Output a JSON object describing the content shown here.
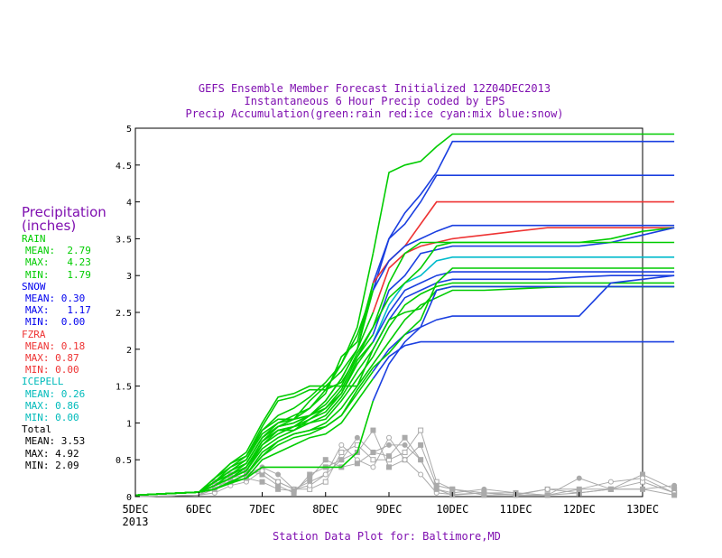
{
  "titles": [
    "GEFS Ensemble Member Forecast Initialized 12Z04DEC2013",
    "Instantaneous 6 Hour Precip coded by EPS",
    "Precip Accumulation(green:rain red:ice cyan:mix blue:snow)"
  ],
  "footer": "Station Data Plot for: Baltimore,MD",
  "stats_panel": {
    "heading_1": "Precipitation",
    "heading_2": "(inches)",
    "groups": [
      {
        "name": "RAIN",
        "color": "#00cc00",
        "rows": [
          "MEAN:  2.79",
          "MAX:   4.23",
          "MIN:   1.79"
        ]
      },
      {
        "name": "SNOW",
        "color": "#0000ee",
        "rows": [
          "MEAN: 0.30",
          "MAX:   1.17",
          "MIN:  0.00"
        ]
      },
      {
        "name": "FZRA",
        "color": "#ee3333",
        "rows": [
          "MEAN: 0.18",
          "MAX: 0.87",
          "MIN: 0.00"
        ]
      },
      {
        "name": "ICEPELL",
        "color": "#00bbbb",
        "rows": [
          "MEAN: 0.26",
          "MAX: 0.86",
          "MIN: 0.00"
        ]
      },
      {
        "name": "Total",
        "color": "#000000",
        "rows": [
          "MEAN: 3.53",
          "MAX: 4.92",
          "MIN: 2.09"
        ]
      }
    ]
  },
  "chart_data": {
    "type": "line",
    "x_tick_labels": [
      "5DEC",
      "6DEC",
      "7DEC",
      "8DEC",
      "9DEC",
      "10DEC",
      "11DEC",
      "12DEC",
      "13DEC"
    ],
    "x_tick_sublabel": "2013",
    "ylim": [
      0,
      5
    ],
    "y_ticks": [
      "0",
      "0.5",
      "1",
      "1.5",
      "2",
      "2.5",
      "3",
      "3.5",
      "4",
      "4.5",
      "5"
    ],
    "colors": {
      "rain": "#00cc00",
      "snow": "#1a3fe0",
      "ice": "#ee3333",
      "mix": "#00bbcc",
      "instant": "#aaaaaa"
    },
    "x_days_from_5dec": [
      0,
      0.5,
      1.0,
      1.25,
      1.5,
      1.75,
      2.0,
      2.25,
      2.5,
      2.75,
      3.0,
      3.25,
      3.5,
      3.75,
      4.0,
      4.25,
      4.5,
      4.75,
      5.0,
      5.5,
      6.0,
      6.5,
      7.0,
      7.5,
      8.0,
      8.5
    ],
    "series": [
      {
        "values": [
          0.02,
          0.04,
          0.06,
          0.25,
          0.45,
          0.55,
          0.9,
          1.1,
          1.2,
          1.35,
          1.55,
          1.8,
          2.3,
          3.3,
          4.4,
          4.5,
          4.55,
          4.75,
          4.92,
          4.92,
          4.92,
          4.92,
          4.92,
          4.92,
          4.92,
          4.92
        ],
        "seg": "rain"
      },
      {
        "values": [
          0.02,
          0.04,
          0.06,
          0.2,
          0.35,
          0.5,
          0.85,
          1.0,
          1.05,
          1.3,
          1.5,
          1.7,
          2.0,
          2.9,
          3.5,
          3.85,
          4.1,
          4.4,
          4.82,
          4.82,
          4.82,
          4.82,
          4.82,
          4.82,
          4.82,
          4.82
        ],
        "seg": "snow"
      },
      {
        "values": [
          0.02,
          0.04,
          0.06,
          0.2,
          0.3,
          0.4,
          0.75,
          0.95,
          1.0,
          1.1,
          1.3,
          1.6,
          2.0,
          2.8,
          3.5,
          3.7,
          4.0,
          4.36,
          4.36,
          4.36,
          4.36,
          4.36,
          4.36,
          4.36,
          4.36,
          4.36
        ],
        "seg": "snow"
      },
      {
        "values": [
          0.02,
          0.04,
          0.06,
          0.2,
          0.35,
          0.45,
          0.8,
          1.0,
          1.1,
          1.2,
          1.4,
          1.9,
          2.1,
          2.9,
          3.2,
          3.4,
          3.7,
          4.0,
          4.0,
          4.0,
          4.0,
          4.0,
          4.0,
          4.0,
          4.0,
          4.0
        ],
        "seg": "ice"
      },
      {
        "values": [
          0.02,
          0.04,
          0.06,
          0.25,
          0.4,
          0.5,
          0.9,
          1.05,
          1.05,
          1.2,
          1.45,
          1.8,
          2.2,
          2.8,
          3.2,
          3.4,
          3.5,
          3.6,
          3.68,
          3.68,
          3.68,
          3.68,
          3.68,
          3.68,
          3.68,
          3.68
        ],
        "seg": "snow"
      },
      {
        "values": [
          0.02,
          0.04,
          0.06,
          0.2,
          0.3,
          0.45,
          0.8,
          0.95,
          1.0,
          1.1,
          1.3,
          1.6,
          2.0,
          2.5,
          3.1,
          3.3,
          3.4,
          3.45,
          3.5,
          3.55,
          3.6,
          3.65,
          3.65,
          3.65,
          3.65,
          3.65
        ],
        "seg": "ice"
      },
      {
        "values": [
          0.02,
          0.04,
          0.06,
          0.2,
          0.35,
          0.45,
          0.8,
          0.95,
          1.05,
          1.1,
          1.25,
          1.5,
          1.95,
          2.3,
          2.9,
          3.3,
          3.45,
          3.45,
          3.45,
          3.45,
          3.45,
          3.45,
          3.45,
          3.5,
          3.6,
          3.65
        ],
        "seg": "rain"
      },
      {
        "values": [
          0.02,
          0.04,
          0.06,
          0.15,
          0.3,
          0.4,
          0.75,
          0.9,
          0.95,
          1.1,
          1.2,
          1.45,
          1.9,
          2.2,
          2.8,
          3.0,
          3.3,
          3.35,
          3.4,
          3.4,
          3.4,
          3.4,
          3.4,
          3.45,
          3.55,
          3.65
        ],
        "seg": "snow"
      },
      {
        "values": [
          0.02,
          0.04,
          0.06,
          0.15,
          0.25,
          0.4,
          0.7,
          0.9,
          0.95,
          1.05,
          1.15,
          1.4,
          1.85,
          2.1,
          2.6,
          2.9,
          3.0,
          3.2,
          3.25,
          3.25,
          3.25,
          3.25,
          3.25,
          3.25,
          3.25,
          3.25
        ],
        "seg": "mix"
      },
      {
        "values": [
          0.02,
          0.04,
          0.06,
          0.2,
          0.3,
          0.4,
          0.75,
          0.9,
          0.9,
          1.05,
          1.2,
          1.4,
          1.8,
          2.1,
          2.5,
          2.8,
          2.9,
          3.0,
          3.05,
          3.05,
          3.05,
          3.05,
          3.05,
          3.05,
          3.05,
          3.05
        ],
        "seg": "snow"
      },
      {
        "values": [
          0.02,
          0.04,
          0.06,
          0.15,
          0.25,
          0.35,
          0.7,
          0.85,
          0.95,
          1.0,
          1.1,
          1.35,
          1.7,
          2.0,
          2.4,
          2.7,
          2.8,
          2.9,
          2.95,
          2.95,
          2.95,
          2.95,
          2.98,
          3.0,
          3.0,
          3.0
        ],
        "seg": "snow"
      },
      {
        "values": [
          0.02,
          0.04,
          0.06,
          0.15,
          0.25,
          0.35,
          0.65,
          0.8,
          0.9,
          1.0,
          1.05,
          1.3,
          1.6,
          1.9,
          2.3,
          2.6,
          2.75,
          2.85,
          2.9,
          2.9,
          2.9,
          2.9,
          2.9,
          2.9,
          2.9,
          2.9
        ],
        "seg": "rain"
      },
      {
        "values": [
          0.02,
          0.04,
          0.06,
          0.1,
          0.2,
          0.3,
          0.6,
          0.75,
          0.85,
          0.9,
          1.0,
          1.2,
          1.5,
          1.8,
          2.1,
          2.4,
          2.6,
          2.7,
          2.8,
          2.8,
          2.82,
          2.84,
          2.85,
          2.85,
          2.85,
          2.85
        ],
        "seg": "rain"
      },
      {
        "values": [
          0.02,
          0.04,
          0.06,
          0.1,
          0.2,
          0.3,
          0.55,
          0.7,
          0.8,
          0.85,
          0.95,
          1.1,
          1.4,
          1.7,
          2.0,
          2.2,
          2.3,
          2.4,
          2.45,
          2.45,
          2.45,
          2.45,
          2.45,
          2.9,
          2.95,
          3.0
        ],
        "seg": "snow"
      },
      {
        "values": [
          0.02,
          0.04,
          0.06,
          0.1,
          0.18,
          0.25,
          0.5,
          0.6,
          0.7,
          0.8,
          0.85,
          1.0,
          1.3,
          1.6,
          1.9,
          2.05,
          2.1,
          2.1,
          2.1,
          2.1,
          2.1,
          2.1,
          2.1,
          2.1,
          2.1,
          2.1
        ],
        "seg": "snow"
      },
      {
        "values": [
          0.02,
          0.04,
          0.06,
          0.25,
          0.45,
          0.6,
          1.0,
          1.35,
          1.4,
          1.5,
          1.5,
          1.5,
          1.5,
          2.0,
          2.4,
          2.5,
          2.55,
          2.8,
          2.85,
          2.85,
          2.85,
          2.85,
          2.85,
          2.85,
          2.85,
          2.85
        ],
        "seg": "rain"
      },
      {
        "values": [
          0.02,
          0.04,
          0.06,
          0.2,
          0.4,
          0.55,
          0.95,
          1.3,
          1.35,
          1.45,
          1.45,
          1.55,
          1.9,
          2.3,
          2.7,
          2.9,
          3.1,
          3.4,
          3.45,
          3.45,
          3.45,
          3.45,
          3.45,
          3.45,
          3.45,
          3.45
        ],
        "seg": "rain"
      },
      {
        "values": [
          0.02,
          0.04,
          0.06,
          0.1,
          0.2,
          0.3,
          0.55,
          0.75,
          0.85,
          0.9,
          0.95,
          1.1,
          1.45,
          1.75,
          1.95,
          2.2,
          2.4,
          2.9,
          3.1,
          3.1,
          3.1,
          3.1,
          3.1,
          3.1,
          3.1,
          3.1
        ],
        "seg": "rain"
      },
      {
        "values": [
          0.02,
          0.04,
          0.06,
          0.1,
          0.2,
          0.25,
          0.4,
          0.4,
          0.4,
          0.4,
          0.4,
          0.4,
          0.6,
          1.3,
          1.8,
          2.1,
          2.3,
          2.8,
          2.85,
          2.85,
          2.85,
          2.85,
          2.85,
          2.85,
          2.85,
          2.85
        ],
        "seg": "snow"
      }
    ],
    "instant_series": [
      {
        "values": [
          0.0,
          0.01,
          0.02,
          0.15,
          0.2,
          0.3,
          0.35,
          0.2,
          0.1,
          0.1,
          0.2,
          0.6,
          0.7,
          0.5,
          0.5,
          0.6,
          0.9,
          0.2,
          0.1,
          0.05,
          0.05,
          0.02,
          0.05,
          0.1,
          0.2,
          0.05
        ]
      },
      {
        "values": [
          0.0,
          0.01,
          0.02,
          0.1,
          0.25,
          0.3,
          0.4,
          0.3,
          0.1,
          0.2,
          0.3,
          0.5,
          0.8,
          0.6,
          0.7,
          0.7,
          0.5,
          0.1,
          0.05,
          0.1,
          0.05,
          0.02,
          0.25,
          0.1,
          0.1,
          0.15
        ]
      },
      {
        "values": [
          0.0,
          0.01,
          0.02,
          0.2,
          0.3,
          0.35,
          0.3,
          0.15,
          0.05,
          0.3,
          0.4,
          0.5,
          0.6,
          0.9,
          0.4,
          0.5,
          0.7,
          0.15,
          0.1,
          0.02,
          0.03,
          0.1,
          0.05,
          0.1,
          0.3,
          0.1
        ]
      },
      {
        "values": [
          0.0,
          0.01,
          0.02,
          0.05,
          0.15,
          0.2,
          0.35,
          0.2,
          0.1,
          0.15,
          0.3,
          0.7,
          0.5,
          0.4,
          0.8,
          0.5,
          0.3,
          0.05,
          0.03,
          0.05,
          0.02,
          0.1,
          0.1,
          0.2,
          0.25,
          0.05
        ]
      },
      {
        "values": [
          0.0,
          0.01,
          0.02,
          0.1,
          0.2,
          0.25,
          0.2,
          0.1,
          0.08,
          0.25,
          0.5,
          0.4,
          0.45,
          0.6,
          0.55,
          0.8,
          0.5,
          0.1,
          0.02,
          0.05,
          0.02,
          0.02,
          0.1,
          0.1,
          0.1,
          0.02
        ]
      }
    ]
  }
}
